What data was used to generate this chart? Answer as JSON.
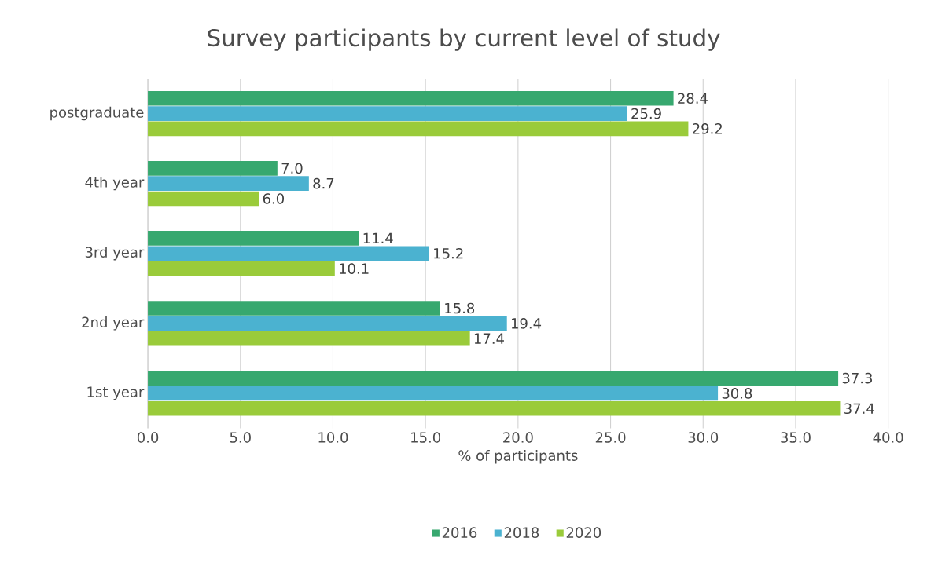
{
  "chart_data": {
    "type": "bar",
    "orientation": "horizontal",
    "title": "Survey participants by current level of study",
    "xlabel": "% of participants",
    "categories": [
      "postgraduate",
      "4th year",
      "3rd year",
      "2nd year",
      "1st year"
    ],
    "series": [
      {
        "name": "2016",
        "color": "#37a86f",
        "values": [
          28.4,
          7.0,
          11.4,
          15.8,
          37.3
        ],
        "value_labels": [
          "28.4",
          "7.0",
          "11.4",
          "15.8",
          "37.3"
        ]
      },
      {
        "name": "2018",
        "color": "#4bb2d0",
        "values": [
          25.9,
          8.7,
          15.2,
          19.4,
          30.8
        ],
        "value_labels": [
          "25.9",
          "8.7",
          "15.2",
          "19.4",
          "30.8"
        ]
      },
      {
        "name": "2020",
        "color": "#9acb3a",
        "values": [
          29.2,
          6.0,
          10.1,
          17.4,
          37.4
        ],
        "value_labels": [
          "29.2",
          "6.0",
          "10.1",
          "17.4",
          "37.4"
        ]
      }
    ],
    "xlim": [
      0,
      40
    ],
    "xticks": [
      {
        "value": 0,
        "label": "0.0"
      },
      {
        "value": 5,
        "label": "5.0"
      },
      {
        "value": 10,
        "label": "10.0"
      },
      {
        "value": 15,
        "label": "15.0"
      },
      {
        "value": 20,
        "label": "20.0"
      },
      {
        "value": 25,
        "label": "25.0"
      },
      {
        "value": 30,
        "label": "30.0"
      },
      {
        "value": 35,
        "label": "35.0"
      },
      {
        "value": 40,
        "label": "40.0"
      }
    ],
    "grid": "x",
    "legend": "bottom"
  }
}
